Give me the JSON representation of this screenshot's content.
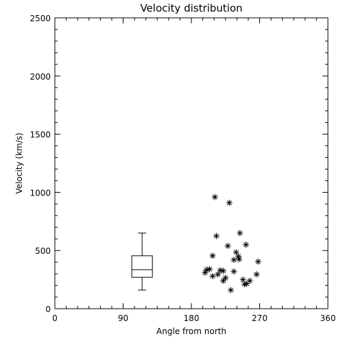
{
  "chart_data": {
    "type": "scatter",
    "title": "Velocity distribution",
    "xlabel": "Angle from north",
    "ylabel": "Velocity (km/s)",
    "xlim": [
      0,
      360
    ],
    "ylim": [
      0,
      2500
    ],
    "x_ticks": [
      0,
      90,
      180,
      270,
      360
    ],
    "x_tick_labels": [
      "0",
      "90",
      "180",
      "270",
      "360"
    ],
    "y_ticks": [
      0,
      500,
      1000,
      1500,
      2000,
      2500
    ],
    "y_tick_labels": [
      "0",
      "500",
      "1000",
      "1500",
      "2000",
      "2500"
    ],
    "grid": false,
    "marker": "asterisk",
    "points": [
      {
        "x": 211,
        "y": 960
      },
      {
        "x": 230,
        "y": 910
      },
      {
        "x": 213,
        "y": 625
      },
      {
        "x": 244,
        "y": 650
      },
      {
        "x": 228,
        "y": 540
      },
      {
        "x": 252,
        "y": 550
      },
      {
        "x": 239,
        "y": 485
      },
      {
        "x": 208,
        "y": 455
      },
      {
        "x": 242,
        "y": 450
      },
      {
        "x": 236,
        "y": 420
      },
      {
        "x": 243,
        "y": 425
      },
      {
        "x": 268,
        "y": 405
      },
      {
        "x": 200,
        "y": 335
      },
      {
        "x": 204,
        "y": 340
      },
      {
        "x": 198,
        "y": 310
      },
      {
        "x": 218,
        "y": 330
      },
      {
        "x": 222,
        "y": 325
      },
      {
        "x": 215,
        "y": 295
      },
      {
        "x": 236,
        "y": 320
      },
      {
        "x": 266,
        "y": 295
      },
      {
        "x": 208,
        "y": 280
      },
      {
        "x": 225,
        "y": 265
      },
      {
        "x": 222,
        "y": 240
      },
      {
        "x": 248,
        "y": 250
      },
      {
        "x": 257,
        "y": 240
      },
      {
        "x": 253,
        "y": 215
      },
      {
        "x": 250,
        "y": 210
      },
      {
        "x": 232,
        "y": 160
      }
    ],
    "boxplot": {
      "x": 115,
      "min": 160,
      "q1": 270,
      "median": 335,
      "q3": 455,
      "max": 650
    }
  }
}
